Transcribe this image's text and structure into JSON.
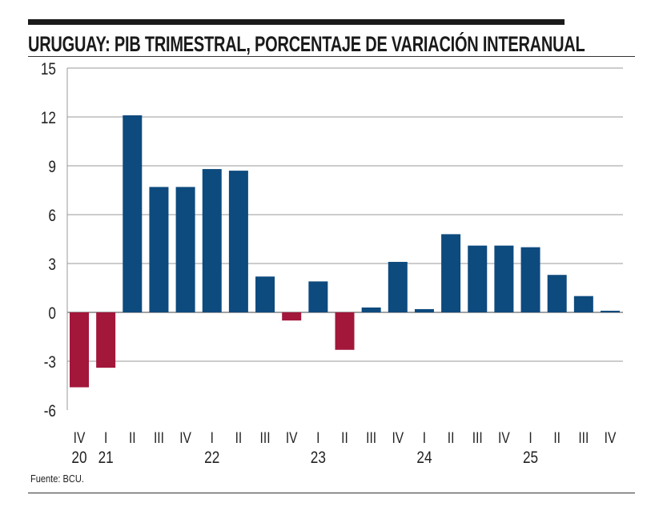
{
  "chart_data": {
    "type": "bar",
    "title": "URUGUAY: PIB TRIMESTRAL, PORCENTAJE DE VARIACIÓN INTERANUAL",
    "source": "Fuente: BCU.",
    "categories": [
      "IV",
      "I",
      "II",
      "III",
      "IV",
      "I",
      "II",
      "III",
      "IV",
      "I",
      "II",
      "III",
      "IV",
      "I",
      "II",
      "III",
      "IV",
      "I",
      "II",
      "III",
      "IV"
    ],
    "years": [
      {
        "label": "20",
        "index": 0
      },
      {
        "label": "21",
        "index": 1
      },
      {
        "label": "22",
        "index": 5
      },
      {
        "label": "23",
        "index": 9
      },
      {
        "label": "24",
        "index": 13
      },
      {
        "label": "25",
        "index": 17
      }
    ],
    "values": [
      -4.6,
      -3.4,
      12.1,
      7.7,
      7.7,
      8.8,
      8.7,
      2.2,
      -0.5,
      1.9,
      -2.3,
      0.3,
      3.1,
      0.2,
      4.8,
      4.1,
      4.1,
      4.0,
      2.3,
      1.0,
      0.1
    ],
    "ylim": [
      -6,
      15
    ],
    "yticks": [
      "15",
      "12",
      "9",
      "6",
      "3",
      "0",
      "-3",
      "-6"
    ],
    "grid": true,
    "colors": {
      "positive": "#0d4a7e",
      "negative": "#a3173a"
    }
  }
}
